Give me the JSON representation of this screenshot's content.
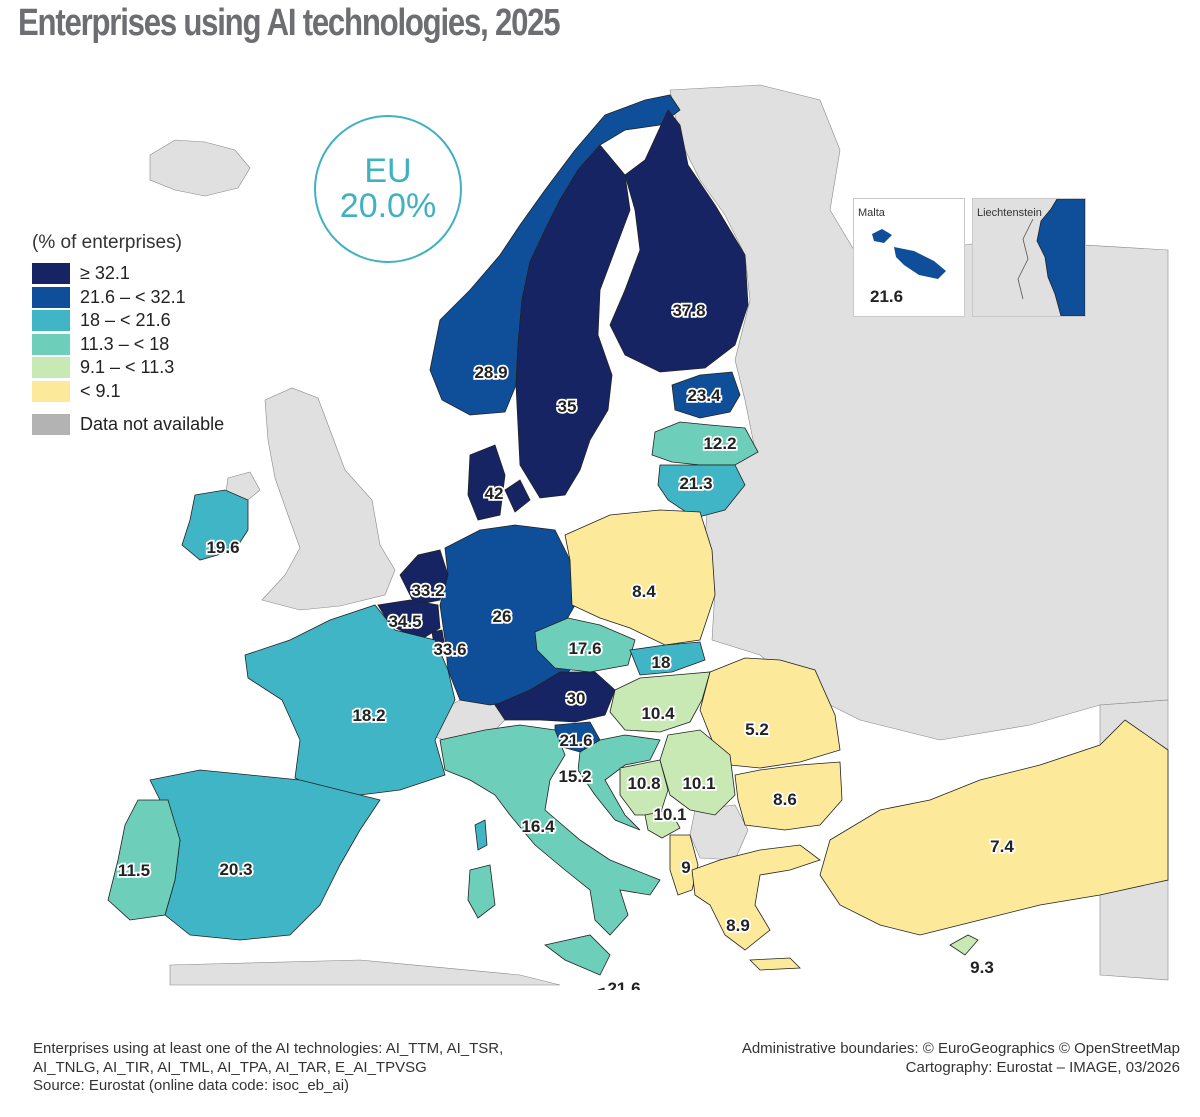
{
  "title": "Enterprises using AI technologies, 2025",
  "eu": {
    "label": "EU",
    "value": "20.0%"
  },
  "legend": {
    "title": "(% of enterprises)",
    "classes": [
      {
        "label": "≥ 32.1",
        "color": "#172463"
      },
      {
        "label": "21.6 – < 32.1",
        "color": "#0f4f99"
      },
      {
        "label": "18 – < 21.6",
        "color": "#40b5c6"
      },
      {
        "label": "11.3 – < 18",
        "color": "#6dceb9"
      },
      {
        "label": "9.1 – < 11.3",
        "color": "#c8e9b4"
      },
      {
        "label": "< 9.1",
        "color": "#fce99a"
      }
    ],
    "na_label": "Data not available",
    "na_color": "#b3b3b3"
  },
  "colors": {
    "sea": "#ffffff",
    "non_eu_land": "#e0e0e0",
    "border": "#222222"
  },
  "countries": [
    {
      "name": "Finland",
      "value": "37.8",
      "class": 0
    },
    {
      "name": "Sweden",
      "value": "35",
      "class": 0
    },
    {
      "name": "Norway",
      "value": "28.9",
      "class": 1
    },
    {
      "name": "Denmark",
      "value": "42",
      "class": 0
    },
    {
      "name": "Estonia",
      "value": "23.4",
      "class": 1
    },
    {
      "name": "Latvia",
      "value": "12.2",
      "class": 3
    },
    {
      "name": "Lithuania",
      "value": "21.3",
      "class": 2
    },
    {
      "name": "Ireland",
      "value": "19.6",
      "class": 2
    },
    {
      "name": "Netherlands",
      "value": "33.2",
      "class": 0
    },
    {
      "name": "Belgium",
      "value": "34.5",
      "class": 0
    },
    {
      "name": "Luxembourg",
      "value": "33.6",
      "class": 0
    },
    {
      "name": "Germany",
      "value": "26",
      "class": 1
    },
    {
      "name": "Poland",
      "value": "8.4",
      "class": 5
    },
    {
      "name": "Czechia",
      "value": "17.6",
      "class": 3
    },
    {
      "name": "Slovakia",
      "value": "18",
      "class": 2
    },
    {
      "name": "Austria",
      "value": "30",
      "class": 1
    },
    {
      "name": "Slovenia",
      "value": "21.6",
      "class": 1
    },
    {
      "name": "Hungary",
      "value": "10.4",
      "class": 4
    },
    {
      "name": "Romania",
      "value": "5.2",
      "class": 5
    },
    {
      "name": "France",
      "value": "18.2",
      "class": 2
    },
    {
      "name": "Croatia",
      "value": "15.2",
      "class": 3
    },
    {
      "name": "Bosnia and Herzegovina",
      "value": "10.8",
      "class": 4
    },
    {
      "name": "Serbia",
      "value": "10.1",
      "class": 4
    },
    {
      "name": "Montenegro",
      "value": "10.1",
      "class": 4
    },
    {
      "name": "Bulgaria",
      "value": "8.6",
      "class": 5
    },
    {
      "name": "Italy",
      "value": "16.4",
      "class": 3
    },
    {
      "name": "Albania",
      "value": "9",
      "class": 5
    },
    {
      "name": "Greece",
      "value": "8.9",
      "class": 5
    },
    {
      "name": "Türkiye",
      "value": "7.4",
      "class": 5
    },
    {
      "name": "Cyprus",
      "value": "9.3",
      "class": 4
    },
    {
      "name": "Portugal",
      "value": "11.5",
      "class": 3
    },
    {
      "name": "Spain",
      "value": "20.3",
      "class": 2
    },
    {
      "name": "Malta",
      "value": "21.6",
      "class": 1
    }
  ],
  "insets": {
    "malta": {
      "label": "Malta",
      "value": "21.6"
    },
    "liechtenstein": {
      "label": "Liechtenstein"
    }
  },
  "footer": {
    "line1": "Enterprises using at least one of the AI technologies: AI_TTM, AI_TSR,",
    "line2": "AI_TNLG, AI_TIR, AI_TML, AI_TPA, AI_TAR, E_AI_TPVSG",
    "line3": "Source: Eurostat (online data code: isoc_eb_ai)",
    "right1": "Administrative boundaries: © EuroGeographics © OpenStreetMap",
    "right2": "Cartography: Eurostat – IMAGE, 03/2026"
  }
}
